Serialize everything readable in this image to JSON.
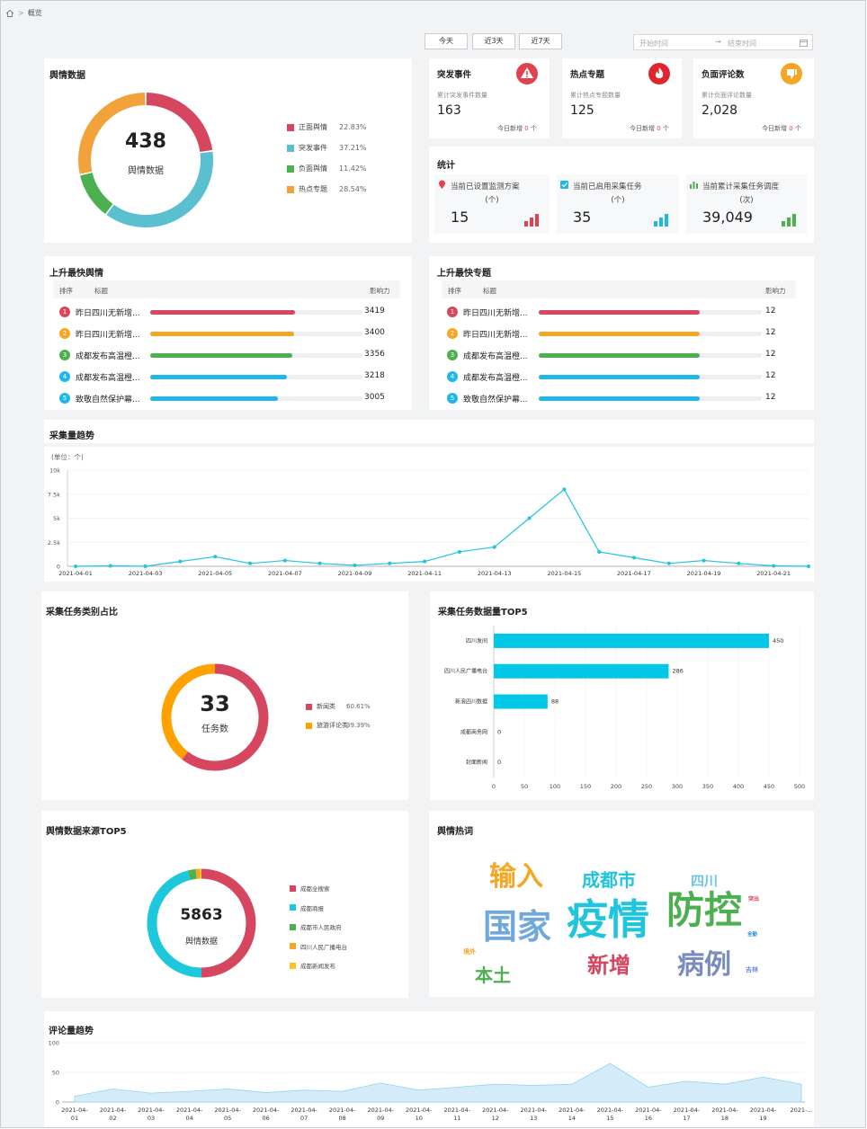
{
  "breadcrumb": {
    "current": "概览"
  },
  "filters": {
    "today": "今天",
    "last3": "近3天",
    "last7": "近7天",
    "start_placeholder": "开始时间",
    "end_placeholder": "结束时间"
  },
  "sentiment": {
    "title": "舆情数据",
    "total": "438",
    "center_label": "舆情数据",
    "items": [
      {
        "label": "正面舆情",
        "pct": "22.83%",
        "value": 22.83,
        "color": "#d6465f"
      },
      {
        "label": "突发事件",
        "pct": "37.21%",
        "value": 37.21,
        "color": "#5ac0d0"
      },
      {
        "label": "负面舆情",
        "pct": "11.42%",
        "value": 11.42,
        "color": "#4caf50"
      },
      {
        "label": "热点专题",
        "pct": "28.54%",
        "value": 28.54,
        "color": "#f2a23a"
      }
    ]
  },
  "kpis": [
    {
      "title": "突发事件",
      "sub": "累计突发事件数量",
      "value": "163",
      "today_label": "今日新增",
      "today_value": "0",
      "unit": "个",
      "icon": "warning-icon",
      "color": "#e0424e"
    },
    {
      "title": "热点专题",
      "sub": "累计热点专题数量",
      "value": "125",
      "today_label": "今日新增",
      "today_value": "0",
      "unit": "个",
      "icon": "fire-icon",
      "color": "#e0242e"
    },
    {
      "title": "负面评论数",
      "sub": "累计负面评论数量",
      "value": "2,028",
      "today_label": "今日新增",
      "today_value": "0",
      "unit": "个",
      "icon": "thumbs-down-icon",
      "color": "#f5a623"
    }
  ],
  "stats": {
    "title": "统计",
    "items": [
      {
        "label": "当前已设置监测方案",
        "unit": "(个)",
        "value": "15",
        "icon": "location-pin-icon",
        "color": "#e0424e"
      },
      {
        "label": "当前已启用采集任务",
        "unit": "(个)",
        "value": "35",
        "icon": "checkbox-icon",
        "color": "#1fb6e8"
      },
      {
        "label": "当前累计采集任务调度",
        "unit": "(次)",
        "value": "39,049",
        "icon": "bar-chart-icon",
        "color": "#4caf50"
      }
    ]
  },
  "rank_news": {
    "title": "上升最快舆情",
    "col_rank": "排序",
    "col_title": "标题",
    "col_value": "影响力",
    "rows": [
      {
        "rank": "1",
        "title": "昨日四川无新增...",
        "value": "3419",
        "num": 3419,
        "color": "#d6465f"
      },
      {
        "rank": "2",
        "title": "昨日四川无新增...",
        "value": "3400",
        "num": 3400,
        "color": "#f5a623"
      },
      {
        "rank": "3",
        "title": "成都发布高温橙...",
        "value": "3356",
        "num": 3356,
        "color": "#4caf50"
      },
      {
        "rank": "4",
        "title": "成都发布高温橙...",
        "value": "3218",
        "num": 3218,
        "color": "#1fb6e8"
      },
      {
        "rank": "5",
        "title": "致敬自然保护幕...",
        "value": "3005",
        "num": 3005,
        "color": "#1fb6e8"
      }
    ]
  },
  "rank_topics": {
    "title": "上升最快专题",
    "col_rank": "排序",
    "col_title": "标题",
    "col_value": "影响力",
    "rows": [
      {
        "rank": "1",
        "title": "昨日四川无新增...",
        "value": "12",
        "num": 12,
        "color": "#d6465f"
      },
      {
        "rank": "2",
        "title": "昨日四川无新增...",
        "value": "12",
        "num": 12,
        "color": "#f5a623"
      },
      {
        "rank": "3",
        "title": "成都发布高温橙...",
        "value": "12",
        "num": 12,
        "color": "#4caf50"
      },
      {
        "rank": "4",
        "title": "成都发布高温橙...",
        "value": "12",
        "num": 12,
        "color": "#1fb6e8"
      },
      {
        "rank": "5",
        "title": "致敬自然保护幕...",
        "value": "12",
        "num": 12,
        "color": "#1fb6e8"
      }
    ]
  },
  "chart_data": [
    {
      "type": "line",
      "title": "采集量趋势",
      "unit_label": "(单位：个)",
      "ylim": [
        0,
        10000
      ],
      "yticks": [
        "0",
        "2.5k",
        "5k",
        "7.5k",
        "10k"
      ],
      "x": [
        "2021-04-01",
        "2021-04-02",
        "2021-04-03",
        "2021-04-04",
        "2021-04-05",
        "2021-04-06",
        "2021-04-07",
        "2021-04-08",
        "2021-04-09",
        "2021-04-10",
        "2021-04-11",
        "2021-04-12",
        "2021-04-13",
        "2021-04-14",
        "2021-04-15",
        "2021-04-16",
        "2021-04-17",
        "2021-04-18",
        "2021-04-19",
        "2021-04-20",
        "2021-04-21",
        "2021-04-22"
      ],
      "xtick_labels": [
        "2021-04-01",
        "2021-04-03",
        "2021-04-05",
        "2021-04-07",
        "2021-04-09",
        "2021-04-11",
        "2021-04-13",
        "2021-04-15",
        "2021-04-17",
        "2021-04-19",
        "2021-04-21"
      ],
      "values": [
        0,
        50,
        0,
        500,
        1000,
        300,
        600,
        300,
        100,
        300,
        500,
        1500,
        2000,
        5000,
        8000,
        1500,
        900,
        300,
        600,
        300,
        50,
        0
      ],
      "color": "#1fc4dd"
    },
    {
      "type": "pie",
      "title": "采集任务类别占比",
      "total": "33",
      "center_label": "任务数",
      "slices": [
        {
          "label": "新闻类",
          "pct": "60.61%",
          "value": 60.61,
          "color": "#d6465f"
        },
        {
          "label": "旅游评论类",
          "pct": "39.39%",
          "value": 39.39,
          "color": "#ffa100"
        }
      ]
    },
    {
      "type": "bar",
      "title": "采集任务数据量TOP5",
      "categories": [
        "四川发间",
        "四川人民广播电台",
        "新浪四川数据",
        "成都商务网",
        "封面新闻"
      ],
      "values": [
        450,
        286,
        88,
        0,
        0
      ],
      "xlim": [
        0,
        500
      ],
      "xticks": [
        "0",
        "50",
        "100",
        "150",
        "200",
        "250",
        "300",
        "350",
        "400",
        "450",
        "500"
      ],
      "color": "#00c8e6"
    },
    {
      "type": "pie",
      "title": "舆情数据来源TOP5",
      "total": "5863",
      "center_label": "舆情数据",
      "slices": [
        {
          "label": "成都全搜索",
          "value": 50,
          "color": "#d6465f"
        },
        {
          "label": "成都商报",
          "value": 46,
          "color": "#1ec8dc"
        },
        {
          "label": "成都市人民政府",
          "value": 2.3,
          "color": "#4caf50"
        },
        {
          "label": "四川人民广播电台",
          "value": 1.2,
          "color": "#f5a623"
        },
        {
          "label": "成都新闻发布",
          "value": 0.5,
          "color": "#f5c623"
        }
      ]
    },
    {
      "type": "area",
      "title": "评论量趋势",
      "ylim": [
        0,
        100
      ],
      "yticks": [
        "0",
        "50",
        "100"
      ],
      "x": [
        "2021-04-01",
        "2021-04-02",
        "2021-04-03",
        "2021-04-04",
        "2021-04-05",
        "2021-04-06",
        "2021-04-07",
        "2021-04-08",
        "2021-04-09",
        "2021-04-10",
        "2021-04-11",
        "2021-04-12",
        "2021-04-13",
        "2021-04-14",
        "2021-04-15",
        "2021-04-16",
        "2021-04-17",
        "2021-04-18",
        "2021-04-19",
        "2021-04-20"
      ],
      "xtick_top": [
        "2021-04-",
        "2021-04-",
        "2021-04-",
        "2021-04-",
        "2021-04-",
        "2021-04-",
        "2021-04-",
        "2021-04-",
        "2021-04-",
        "2021-04-",
        "2021-04-",
        "2021-04-",
        "2021-04-",
        "2021-04-",
        "2021-04-",
        "2021-04-",
        "2021-04-",
        "2021-04-",
        "2021-04-",
        "2021-..."
      ],
      "xtick_bottom": [
        "01",
        "02",
        "03",
        "04",
        "05",
        "06",
        "07",
        "08",
        "09",
        "10",
        "11",
        "12",
        "13",
        "14",
        "15",
        "16",
        "17",
        "18",
        "19",
        ""
      ],
      "values": [
        10,
        22,
        15,
        18,
        22,
        16,
        20,
        18,
        32,
        20,
        25,
        30,
        28,
        30,
        65,
        25,
        35,
        30,
        42,
        30
      ],
      "color": "#8fd3f4"
    }
  ],
  "wordcloud": {
    "title": "舆情热词",
    "words": [
      {
        "text": "输入",
        "color": "#f5a623"
      },
      {
        "text": "成都市",
        "color": "#1fc4dd"
      },
      {
        "text": "四川",
        "color": "#6fc5e8"
      },
      {
        "text": "国家",
        "color": "#6fa8dc"
      },
      {
        "text": "疫情",
        "color": "#1fc4dd"
      },
      {
        "text": "防控",
        "color": "#4caf50"
      },
      {
        "text": "突出",
        "color": "#d6465f"
      },
      {
        "text": "全勤",
        "color": "#1f8ad6"
      },
      {
        "text": "境外",
        "color": "#f5a623"
      },
      {
        "text": "本土",
        "color": "#4caf50"
      },
      {
        "text": "新增",
        "color": "#d6465f"
      },
      {
        "text": "病例",
        "color": "#7a8bbf"
      },
      {
        "text": "吉林",
        "color": "#6f8bd6"
      }
    ]
  }
}
